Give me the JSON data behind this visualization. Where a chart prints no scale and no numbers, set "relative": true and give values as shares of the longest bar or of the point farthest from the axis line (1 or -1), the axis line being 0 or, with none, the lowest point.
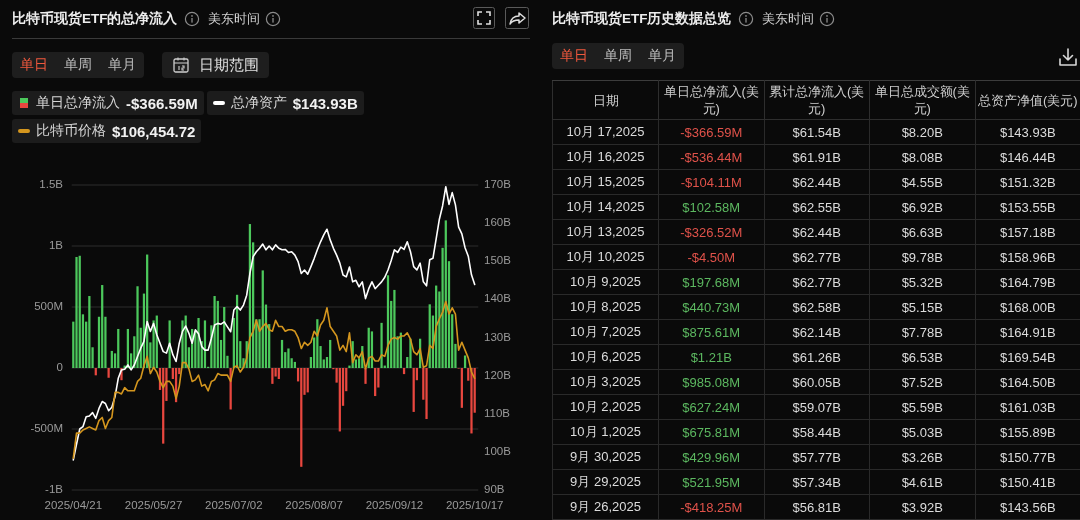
{
  "chart_data": [
    {
      "type": "bar",
      "title": "比特币现货ETF的总净流入",
      "subtitle": "美东时间",
      "annotations": [
        "单日",
        "单周",
        "单月",
        "日期范围",
        "-$366.59M",
        "$143.93B"
      ],
      "categories": [
        "2025/04/21",
        null,
        null,
        null,
        null,
        null,
        null,
        null,
        null,
        null,
        null,
        null,
        null,
        null,
        null,
        null,
        null,
        null,
        null,
        null,
        null,
        null,
        null,
        null,
        null,
        "2025/05/27",
        null,
        null,
        null,
        null,
        null,
        null,
        null,
        null,
        null,
        null,
        null,
        null,
        null,
        null,
        null,
        null,
        null,
        null,
        null,
        null,
        null,
        null,
        null,
        null,
        "2025/07/02",
        null,
        null,
        null,
        null,
        null,
        null,
        null,
        null,
        null,
        null,
        null,
        null,
        null,
        null,
        null,
        null,
        null,
        null,
        null,
        null,
        null,
        null,
        null,
        null,
        "2025/08/07",
        null,
        null,
        null,
        null,
        null,
        null,
        null,
        null,
        null,
        null,
        null,
        null,
        null,
        null,
        null,
        null,
        null,
        null,
        null,
        null,
        null,
        null,
        null,
        null,
        "2025/09/12",
        null,
        null,
        null,
        null,
        null,
        null,
        null,
        null,
        null,
        null,
        null,
        null,
        null,
        null,
        null,
        null,
        null,
        null,
        null,
        null,
        null,
        null,
        null,
        null,
        "2025/10/17"
      ],
      "series": [
        {
          "name": "单日总净流入",
          "type": "bar",
          "values": [
            380000000,
            910000000,
            920000000,
            440000000,
            380000000,
            590000000,
            170000000,
            -60000000,
            420000000,
            680000000,
            420000000,
            -80000000,
            140000000,
            120000000,
            320000000,
            -100000000,
            20000000,
            320000000,
            120000000,
            260000000,
            670000000,
            330000000,
            610000000,
            930000000,
            210000000,
            390000000,
            430000000,
            -180000000,
            -620000000,
            -270000000,
            390000000,
            -90000000,
            -280000000,
            -50000000,
            390000000,
            430000000,
            170000000,
            320000000,
            300000000,
            410000000,
            220000000,
            390000000,
            10000000,
            350000000,
            590000000,
            550000000,
            230000000,
            500000000,
            100000000,
            -340000000,
            410000000,
            600000000,
            220000000,
            80000000,
            220000000,
            1180000000,
            1030000000,
            400000000,
            400000000,
            800000000,
            520000000,
            360000000,
            -130000000,
            -70000000,
            -90000000,
            230000000,
            130000000,
            160000000,
            80000000,
            50000000,
            -110000000,
            -810000000,
            -220000000,
            -200000000,
            90000000,
            250000000,
            400000000,
            180000000,
            70000000,
            90000000,
            230000000,
            -10000000,
            -120000000,
            -520000000,
            -310000000,
            -190000000,
            20000000,
            220000000,
            70000000,
            80000000,
            180000000,
            -130000000,
            330000000,
            300000000,
            -230000000,
            -160000000,
            370000000,
            20000000,
            760000000,
            550000000,
            640000000,
            260000000,
            290000000,
            -50000000,
            90000000,
            240000000,
            -360000000,
            -100000000,
            240000000,
            -260000000,
            -418250000,
            521950000,
            429960000,
            675810000,
            627240000,
            985080000,
            1210000000,
            875610000,
            440730000,
            197680000,
            -4500000,
            -326520000,
            102580000,
            -104110000,
            -536440000,
            -366590000
          ],
          "colors": [
            "#4cc85c",
            "#4cc85c",
            "#4cc85c",
            "#4cc85c",
            "#4cc85c",
            "#4cc85c",
            "#4cc85c",
            "#e8473f",
            "#4cc85c",
            "#4cc85c",
            "#4cc85c",
            "#e8473f",
            "#4cc85c",
            "#4cc85c",
            "#4cc85c",
            "#e8473f",
            "#4cc85c",
            "#4cc85c",
            "#4cc85c",
            "#4cc85c",
            "#4cc85c",
            "#4cc85c",
            "#4cc85c",
            "#4cc85c",
            "#4cc85c",
            "#4cc85c",
            "#4cc85c",
            "#e8473f",
            "#e8473f",
            "#e8473f",
            "#4cc85c",
            "#e8473f",
            "#e8473f",
            "#e8473f",
            "#4cc85c",
            "#4cc85c",
            "#4cc85c",
            "#4cc85c",
            "#4cc85c",
            "#4cc85c",
            "#4cc85c",
            "#4cc85c",
            "#4cc85c",
            "#4cc85c",
            "#4cc85c",
            "#4cc85c",
            "#4cc85c",
            "#4cc85c",
            "#4cc85c",
            "#e8473f",
            "#4cc85c",
            "#4cc85c",
            "#4cc85c",
            "#4cc85c",
            "#4cc85c",
            "#4cc85c",
            "#4cc85c",
            "#4cc85c",
            "#4cc85c",
            "#4cc85c",
            "#4cc85c",
            "#4cc85c",
            "#e8473f",
            "#e8473f",
            "#e8473f",
            "#4cc85c",
            "#4cc85c",
            "#4cc85c",
            "#4cc85c",
            "#4cc85c",
            "#e8473f",
            "#e8473f",
            "#e8473f",
            "#e8473f",
            "#4cc85c",
            "#4cc85c",
            "#4cc85c",
            "#4cc85c",
            "#4cc85c",
            "#4cc85c",
            "#4cc85c",
            "#e8473f",
            "#e8473f",
            "#e8473f",
            "#e8473f",
            "#e8473f",
            "#4cc85c",
            "#4cc85c",
            "#4cc85c",
            "#4cc85c",
            "#4cc85c",
            "#e8473f",
            "#4cc85c",
            "#4cc85c",
            "#e8473f",
            "#e8473f",
            "#4cc85c",
            "#4cc85c",
            "#4cc85c",
            "#4cc85c",
            "#4cc85c",
            "#4cc85c",
            "#4cc85c",
            "#e8473f",
            "#4cc85c",
            "#4cc85c",
            "#e8473f",
            "#e8473f",
            "#4cc85c",
            "#e8473f",
            "#e8473f",
            "#4cc85c",
            "#4cc85c",
            "#4cc85c",
            "#4cc85c",
            "#4cc85c",
            "#4cc85c",
            "#4cc85c",
            "#4cc85c",
            "#4cc85c",
            "#e8473f",
            "#e8473f",
            "#4cc85c",
            "#e8473f",
            "#e8473f",
            "#e8473f"
          ]
        },
        {
          "name": "总净资产",
          "type": "line",
          "axis": "y2",
          "color": "#ffffff",
          "values": [
            97.9,
            102,
            106,
            106.6,
            109.2,
            109.4,
            110.3,
            108.8,
            111.4,
            113.2,
            112.7,
            110.8,
            111.7,
            114.5,
            119.3,
            121.5,
            121.7,
            122.8,
            121.5,
            122.8,
            125,
            127.2,
            129,
            134.2,
            131.6,
            133.7,
            130.7,
            128.5,
            126.3,
            125.9,
            128.5,
            125.5,
            123.7,
            128.5,
            131.6,
            133,
            131.1,
            128.5,
            132,
            131,
            127.6,
            126.7,
            126.7,
            129.8,
            133.3,
            133.7,
            133.5,
            134.1,
            132.8,
            131.5,
            137.2,
            138.1,
            137.2,
            138.5,
            141.1,
            146.8,
            151.2,
            152.5,
            153.4,
            154.5,
            153,
            154,
            153,
            154.3,
            153.4,
            153,
            153.1,
            152.3,
            152.5,
            151.6,
            149.9,
            146.8,
            147.7,
            146.6,
            148.6,
            150.7,
            153,
            155.1,
            156.9,
            158.4,
            155.6,
            153.4,
            151.6,
            149.5,
            146.4,
            145.9,
            148.5,
            144.6,
            145,
            143.3,
            144.6,
            140.2,
            142.8,
            144.6,
            142.8,
            143.7,
            144.6,
            145.8,
            147.7,
            150.2,
            153,
            152.3,
            153.7,
            153.1,
            155.1,
            152.5,
            148.6,
            147.7,
            149.5,
            144.6,
            143.56,
            150.41,
            150.77,
            155.89,
            161.03,
            164.5,
            169.54,
            164.91,
            168,
            164.79,
            158.96,
            157.18,
            153.55,
            151.32,
            146.44,
            143.93
          ]
        }
      ],
      "ylim": [
        -1000000000,
        1500000000
      ],
      "yticks": [
        {
          "value": -1000000000,
          "label": "-1B"
        },
        {
          "value": -500000000,
          "label": "-500M"
        },
        0,
        {
          "value": 500000000,
          "label": "500M"
        },
        {
          "value": 1000000000,
          "label": "1B"
        },
        {
          "value": 1500000000,
          "label": "1.5B"
        }
      ],
      "y2lim": [
        90,
        170
      ],
      "y2ticks": [
        {
          "value": 90,
          "label": "90B"
        },
        {
          "value": 100,
          "label": "100B"
        },
        {
          "value": 110,
          "label": "110B"
        },
        {
          "value": 120,
          "label": "120B"
        },
        {
          "value": 130,
          "label": "130B"
        },
        {
          "value": 140,
          "label": "140B"
        },
        {
          "value": 150,
          "label": "150B"
        },
        {
          "value": 160,
          "label": "160B"
        },
        {
          "value": 170,
          "label": "170B"
        }
      ],
      "grid": "y",
      "legend": "top left"
    },
    {
      "type": "line",
      "relative": true,
      "annotations": [
        "$106,454.72"
      ],
      "categories": [
        null,
        null,
        null,
        null,
        null,
        null,
        null,
        null,
        null,
        null,
        null,
        null,
        null,
        null,
        null,
        null,
        null,
        null,
        null,
        null,
        null,
        null,
        null,
        null,
        null,
        null,
        null,
        null,
        null,
        null,
        null,
        null,
        null,
        null,
        null,
        null,
        null,
        null,
        null,
        null,
        null,
        null,
        null,
        null,
        null,
        null,
        null,
        null,
        null,
        null,
        null,
        null,
        null,
        null,
        null,
        null,
        null,
        null,
        null,
        null,
        null,
        null,
        null,
        null,
        null,
        null,
        null,
        null,
        null,
        null,
        null,
        null,
        null,
        null,
        null,
        null,
        null,
        null,
        null,
        null,
        null,
        null,
        null,
        null,
        null,
        null,
        null,
        null,
        null,
        null,
        null,
        null,
        null,
        null,
        null,
        null,
        null,
        null,
        null,
        null,
        null,
        null,
        null,
        null,
        null,
        null,
        null,
        null,
        null,
        null,
        null,
        null,
        null,
        null,
        null,
        null,
        null,
        null,
        null,
        null,
        null,
        null,
        null,
        null,
        null,
        null
      ],
      "series": [
        {
          "name": "比特币价格",
          "color": "#d4961e",
          "values": [
            0,
            0.16,
            0.16,
            0.18,
            0.19,
            0.2,
            0.19,
            0.18,
            0.24,
            0.26,
            0.19,
            0.24,
            0.26,
            0.42,
            0.42,
            0.41,
            0.45,
            0.43,
            0.43,
            0.43,
            0.49,
            0.51,
            0.59,
            0.65,
            0.54,
            0.58,
            0.55,
            0.49,
            0.45,
            0.49,
            0.49,
            0.46,
            0.38,
            0.46,
            0.61,
            0.61,
            0.57,
            0.49,
            0.5,
            0.53,
            0.46,
            0.47,
            0.43,
            0.49,
            0.5,
            0.54,
            0.53,
            0.53,
            0.53,
            0.49,
            0.58,
            0.59,
            0.55,
            0.58,
            0.64,
            0.77,
            0.81,
            0.88,
            0.81,
            0.84,
            0.86,
            0.82,
            0.81,
            0.88,
            0.84,
            0.84,
            0.81,
            0.82,
            0.82,
            0.81,
            0.77,
            0.7,
            0.74,
            0.72,
            0.74,
            0.81,
            0.78,
            0.85,
            0.88,
            0.96,
            0.84,
            0.81,
            0.78,
            0.69,
            0.72,
            0.68,
            0.8,
            0.61,
            0.66,
            0.64,
            0.68,
            0.57,
            0.64,
            0.65,
            0.62,
            0.62,
            0.66,
            0.65,
            0.72,
            0.76,
            0.77,
            0.76,
            0.78,
            0.78,
            0.8,
            0.76,
            0.68,
            0.66,
            0.7,
            0.58,
            0.59,
            0.72,
            0.7,
            0.84,
            0.89,
            0.93,
            1,
            0.92,
            0.96,
            0.92,
            0.69,
            0.74,
            0.69,
            0.64,
            0.55,
            0.51
          ]
        }
      ],
      "legend": "top left"
    },
    {
      "type": "other",
      "title": "比特币现货ETF历史数据总览",
      "subtitle": "美东时间",
      "annotations": [
        "单日",
        "单周",
        "单月"
      ],
      "xlabel": "日期",
      "categories": [
        "10月 17,2025",
        "10月 16,2025",
        "10月 15,2025",
        "10月 14,2025",
        "10月 13,2025",
        "10月 10,2025",
        "10月 9,2025",
        "10月 8,2025",
        "10月 7,2025",
        "10月 6,2025",
        "10月 3,2025",
        "10月 2,2025",
        "10月 1,2025",
        "9月 30,2025",
        "9月 29,2025",
        "9月 26,2025"
      ],
      "series": [
        {
          "name": "单日总净流入(美元)",
          "colors": [
            "#e0524a",
            "#e0524a",
            "#e0524a",
            "#5cb860",
            "#e0524a",
            "#e0524a",
            "#5cb860",
            "#5cb860",
            "#5cb860",
            "#5cb860",
            "#5cb860",
            "#5cb860",
            "#5cb860",
            "#5cb860",
            "#5cb860",
            "#e0524a"
          ],
          "values": [
            -366590000,
            -536440000,
            -104110000,
            102580000,
            -326520000,
            -4500000,
            197680000,
            440730000,
            875610000,
            1210000000,
            985080000,
            627240000,
            675810000,
            429960000,
            521950000,
            -418250000
          ],
          "value_labels": [
            "-$366.59M",
            "-$536.44M",
            "-$104.11M",
            "$102.58M",
            "-$326.52M",
            "-$4.50M",
            "$197.68M",
            "$440.73M",
            "$875.61M",
            "$1.21B",
            "$985.08M",
            "$627.24M",
            "$675.81M",
            "$429.96M",
            "$521.95M",
            "-$418.25M"
          ]
        },
        {
          "name": "累计总净流入(美元)",
          "color": "#dcdcdc",
          "values": [
            61540000000,
            61910000000,
            62440000000,
            62550000000,
            62440000000,
            62770000000,
            62770000000,
            62580000000,
            62140000000,
            61260000000,
            60050000000,
            59070000000,
            58440000000,
            57770000000,
            57340000000,
            56810000000
          ],
          "value_labels": [
            "$61.54B",
            "$61.91B",
            "$62.44B",
            "$62.55B",
            "$62.44B",
            "$62.77B",
            "$62.77B",
            "$62.58B",
            "$62.14B",
            "$61.26B",
            "$60.05B",
            "$59.07B",
            "$58.44B",
            "$57.77B",
            "$57.34B",
            "$56.81B"
          ]
        },
        {
          "name": "单日总成交额(美元)",
          "color": "#dcdcdc",
          "values": [
            8200000000,
            8080000000,
            4550000000,
            6920000000,
            6630000000,
            9780000000,
            5320000000,
            5150000000,
            7780000000,
            6530000000,
            7520000000,
            5590000000,
            5030000000,
            3260000000,
            4610000000,
            3920000000
          ],
          "value_labels": [
            "$8.20B",
            "$8.08B",
            "$4.55B",
            "$6.92B",
            "$6.63B",
            "$9.78B",
            "$5.32B",
            "$5.15B",
            "$7.78B",
            "$6.53B",
            "$7.52B",
            "$5.59B",
            "$5.03B",
            "$3.26B",
            "$4.61B",
            "$3.92B"
          ]
        },
        {
          "name": "总资产净值(美元)",
          "color": "#dcdcdc",
          "values": [
            143930000000,
            146440000000,
            151320000000,
            153550000000,
            157180000000,
            158960000000,
            164790000000,
            168000000000,
            164910000000,
            169540000000,
            164500000000,
            161030000000,
            155890000000,
            150770000000,
            150410000000,
            143560000000
          ],
          "value_labels": [
            "$143.93B",
            "$146.44B",
            "$151.32B",
            "$153.55B",
            "$157.18B",
            "$158.96B",
            "$164.79B",
            "$168.00B",
            "$164.91B",
            "$169.54B",
            "$164.50B",
            "$161.03B",
            "$155.89B",
            "$150.77B",
            "$150.41B",
            "$143.56B"
          ]
        }
      ]
    }
  ]
}
